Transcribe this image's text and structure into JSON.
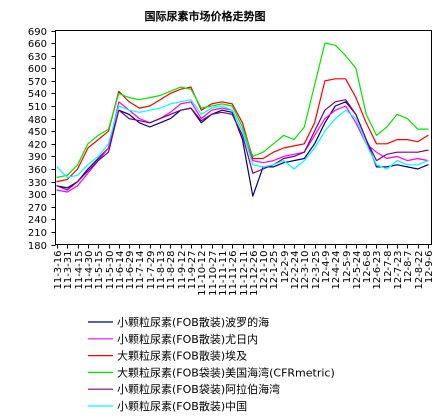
{
  "chart_data": {
    "type": "line",
    "title": "国际尿素市场价格走势图",
    "ylim": [
      180,
      690
    ],
    "y_ticks": [
      180,
      210,
      240,
      270,
      300,
      330,
      360,
      390,
      420,
      450,
      480,
      510,
      540,
      570,
      600,
      630,
      660,
      690
    ],
    "grid": false,
    "legend_position": "bottom",
    "categories": [
      "11-3-16",
      "11-3-31",
      "11-4-15",
      "11-4-30",
      "11-5-15",
      "11-5-30",
      "11-6-14",
      "11-6-29",
      "11-7-14",
      "11-7-29",
      "11-8-13",
      "11-8-28",
      "11-9-12",
      "11-9-27",
      "11-10-12",
      "11-10-27",
      "11-11-11",
      "11-11-26",
      "11-12-11",
      "11-12-26",
      "12-1-10",
      "12-1-25",
      "12-2-9",
      "12-2-24",
      "12-3-10",
      "12-3-25",
      "12-4-9",
      "12-4-24",
      "12-5-9",
      "12-5-24",
      "12-6-8",
      "12-6-23",
      "12-7-8",
      "12-7-23",
      "12-8-7",
      "12-8-22",
      "12-9-6"
    ],
    "series": [
      {
        "name": "小颗粒尿素(FOB散装)波罗的海",
        "color": "#000080",
        "values": [
          320,
          315,
          330,
          360,
          385,
          410,
          500,
          490,
          470,
          460,
          470,
          480,
          500,
          505,
          470,
          490,
          500,
          495,
          430,
          295,
          365,
          365,
          375,
          380,
          385,
          420,
          470,
          510,
          520,
          490,
          430,
          365,
          365,
          370,
          365,
          360,
          370
        ]
      },
      {
        "name": "小颗粒尿素(FOB散装)尤日内",
        "color": "#FF00FF",
        "values": [
          310,
          305,
          320,
          350,
          380,
          410,
          520,
          500,
          480,
          470,
          480,
          495,
          515,
          520,
          480,
          500,
          505,
          500,
          450,
          380,
          375,
          380,
          390,
          395,
          400,
          440,
          480,
          500,
          510,
          470,
          420,
          400,
          385,
          390,
          380,
          385,
          380
        ]
      },
      {
        "name": "大颗粒尿素(FOB散装)埃及",
        "color": "#FF0000",
        "values": [
          330,
          335,
          360,
          410,
          430,
          450,
          545,
          520,
          505,
          510,
          525,
          540,
          550,
          555,
          500,
          515,
          520,
          515,
          470,
          385,
          385,
          400,
          410,
          415,
          420,
          470,
          570,
          575,
          575,
          530,
          470,
          420,
          420,
          430,
          430,
          425,
          440
        ]
      },
      {
        "name": "大颗粒尿素(FOB袋装)美国海湾(CFRmetric)",
        "color": "#00E600",
        "values": [
          340,
          345,
          370,
          420,
          440,
          455,
          540,
          530,
          525,
          530,
          535,
          545,
          555,
          550,
          505,
          510,
          515,
          510,
          460,
          390,
          400,
          420,
          440,
          430,
          460,
          560,
          660,
          655,
          630,
          600,
          490,
          440,
          460,
          490,
          480,
          455,
          455
        ]
      },
      {
        "name": "小颗粒尿素(FOB袋装)阿拉伯海湾",
        "color": "#800080",
        "values": [
          320,
          310,
          330,
          355,
          380,
          400,
          500,
          480,
          475,
          470,
          480,
          490,
          500,
          505,
          475,
          490,
          495,
          490,
          440,
          350,
          360,
          370,
          385,
          390,
          400,
          450,
          500,
          520,
          525,
          490,
          430,
          380,
          395,
          400,
          400,
          400,
          405
        ]
      },
      {
        "name": "小颗粒尿素(FOB散装)中国",
        "color": "#00FFFF",
        "values": [
          365,
          340,
          345,
          370,
          390,
          420,
          510,
          500,
          495,
          500,
          505,
          515,
          520,
          525,
          490,
          505,
          510,
          500,
          450,
          370,
          365,
          370,
          380,
          360,
          380,
          410,
          450,
          480,
          500,
          480,
          420,
          370,
          360,
          380,
          370,
          370,
          380
        ]
      }
    ]
  }
}
